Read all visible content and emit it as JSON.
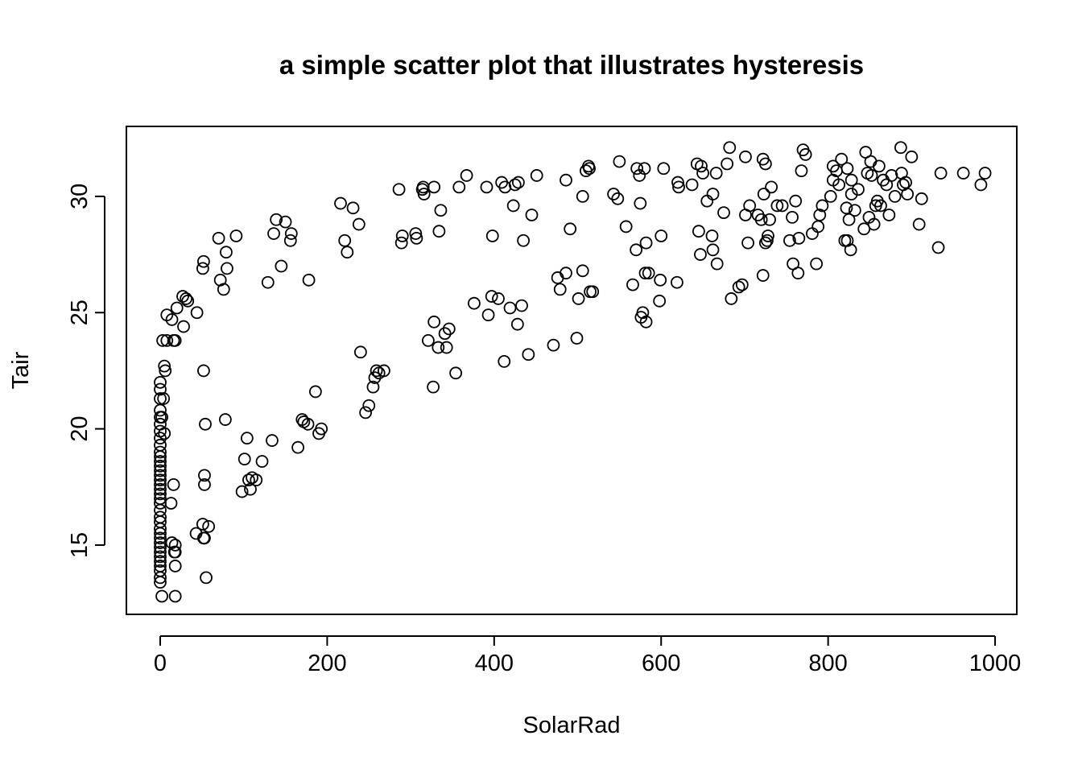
{
  "chart_data": {
    "type": "scatter",
    "title": "a simple scatter plot that illustrates hysteresis",
    "x_label": "SolarRad",
    "y_label": "Tair",
    "color": "#000000",
    "xlim": [
      -40.5,
      1026
    ],
    "ylim": [
      12.02,
      33.01
    ],
    "xticks": [
      0,
      200,
      400,
      600,
      800,
      1000
    ],
    "yticks": [
      15,
      20,
      25,
      30
    ],
    "x": [
      0,
      0,
      0,
      0,
      0,
      0,
      0,
      0,
      0,
      0,
      0,
      0,
      0,
      0,
      0,
      0,
      0,
      0,
      0,
      0,
      0,
      0,
      0,
      0,
      0,
      0,
      0,
      0,
      0,
      0,
      0,
      0,
      0,
      0,
      0,
      0,
      2,
      5,
      6,
      4,
      3,
      8,
      16,
      18,
      8,
      20,
      14,
      28,
      44,
      27,
      31,
      33,
      51,
      52,
      72,
      76,
      80,
      79,
      70,
      91,
      129,
      136,
      139,
      145,
      150,
      156,
      157,
      178,
      216,
      221,
      224,
      231,
      238,
      286,
      289,
      290,
      306,
      307,
      314,
      315,
      316,
      328,
      334,
      336,
      358,
      367,
      391,
      398,
      409,
      413,
      423,
      425,
      429,
      435,
      445,
      451,
      486,
      491,
      506,
      510,
      513,
      514,
      543,
      548,
      550,
      558,
      571,
      574,
      575,
      580,
      582,
      600,
      603,
      620,
      621,
      637,
      643,
      645,
      648,
      650,
      655,
      662,
      666,
      675,
      679,
      682,
      701,
      706,
      716,
      720,
      722,
      723,
      725,
      727,
      730,
      732,
      739,
      745,
      754,
      757,
      761,
      765,
      768,
      770,
      773,
      781,
      788,
      790,
      793,
      803,
      806,
      806,
      810,
      816,
      820,
      822,
      823,
      823,
      825,
      828,
      828,
      832,
      836,
      843,
      845,
      847,
      849,
      851,
      852,
      855,
      857,
      859,
      861,
      863,
      866,
      870,
      873,
      876,
      880,
      887,
      888,
      890,
      893,
      895,
      900,
      909,
      912,
      932,
      935,
      962,
      983,
      988,
      5,
      2,
      13,
      16,
      14,
      18,
      17,
      18,
      18,
      18,
      43,
      52,
      53,
      51,
      58,
      55,
      53,
      53,
      54,
      52,
      78,
      98,
      101,
      104,
      106,
      108,
      110,
      115,
      122,
      134,
      165,
      170,
      172,
      177,
      186,
      190,
      193,
      240,
      246,
      250,
      255,
      257,
      259,
      262,
      268,
      321,
      327,
      328,
      333,
      341,
      343,
      346,
      354,
      376,
      393,
      397,
      405,
      412,
      419,
      428,
      433,
      441,
      471,
      476,
      479,
      486,
      499,
      501,
      506,
      515,
      518,
      566,
      570,
      576,
      578,
      581,
      582,
      585,
      598,
      599,
      619,
      647,
      661,
      662,
      667,
      684,
      693,
      697,
      701,
      704,
      722,
      725,
      728,
      758,
      764,
      786,
      813,
      827
    ],
    "values": [
      13.4,
      13.6,
      13.9,
      14.1,
      14.3,
      14.5,
      14.7,
      14.9,
      15.1,
      15.3,
      15.5,
      15.7,
      16.0,
      16.2,
      16.5,
      16.8,
      17.0,
      17.2,
      17.4,
      17.6,
      17.8,
      18.0,
      18.2,
      18.4,
      18.6,
      18.8,
      19.0,
      19.3,
      19.6,
      19.9,
      20.2,
      20.5,
      20.8,
      21.3,
      21.7,
      22.0,
      12.8,
      22.7,
      22.5,
      21.3,
      23.8,
      23.8,
      23.8,
      23.8,
      24.9,
      25.2,
      24.7,
      24.4,
      25.0,
      25.7,
      25.6,
      25.5,
      26.9,
      27.2,
      26.4,
      26.0,
      26.9,
      27.6,
      28.2,
      28.3,
      26.3,
      28.4,
      29.0,
      27.0,
      28.9,
      28.1,
      28.4,
      26.4,
      29.7,
      28.1,
      27.6,
      29.5,
      28.8,
      30.3,
      28.0,
      28.3,
      28.4,
      28.2,
      30.3,
      30.4,
      30.1,
      30.4,
      28.5,
      29.4,
      30.4,
      30.9,
      30.4,
      28.3,
      30.6,
      30.4,
      29.6,
      30.5,
      30.6,
      28.1,
      29.2,
      30.9,
      30.7,
      28.6,
      30.0,
      31.1,
      31.3,
      31.2,
      30.1,
      29.9,
      31.5,
      28.7,
      31.2,
      30.9,
      29.7,
      31.2,
      28.0,
      28.3,
      31.2,
      30.6,
      30.4,
      30.5,
      31.4,
      28.5,
      31.3,
      31.0,
      29.8,
      30.1,
      31.0,
      29.3,
      31.4,
      32.1,
      31.7,
      29.6,
      29.2,
      29.0,
      31.6,
      30.1,
      31.4,
      28.1,
      29.0,
      30.4,
      29.6,
      29.6,
      28.1,
      29.1,
      29.8,
      28.2,
      31.1,
      32.0,
      31.8,
      28.4,
      28.7,
      29.2,
      29.6,
      30.0,
      30.7,
      31.3,
      31.1,
      31.6,
      28.1,
      29.5,
      28.1,
      31.2,
      29.0,
      30.1,
      30.7,
      29.4,
      30.3,
      28.6,
      31.9,
      31.0,
      29.1,
      31.5,
      30.9,
      28.8,
      29.6,
      29.8,
      31.3,
      29.6,
      30.7,
      30.5,
      29.2,
      30.9,
      30.0,
      32.1,
      31.0,
      30.5,
      30.6,
      30.1,
      31.7,
      28.8,
      29.9,
      27.8,
      31.0,
      31.0,
      30.5,
      31.0,
      19.8,
      20.5,
      16.8,
      17.6,
      15.1,
      15.0,
      14.7,
      14.7,
      14.1,
      12.8,
      15.5,
      15.3,
      15.3,
      15.9,
      15.8,
      13.6,
      17.6,
      18.0,
      20.2,
      22.5,
      20.4,
      17.3,
      18.7,
      19.6,
      17.8,
      17.4,
      17.9,
      17.8,
      18.6,
      19.5,
      19.2,
      20.4,
      20.3,
      20.2,
      21.6,
      19.8,
      20.0,
      23.3,
      20.7,
      21.0,
      21.8,
      22.2,
      22.5,
      22.4,
      22.5,
      23.8,
      21.8,
      24.6,
      23.5,
      24.1,
      23.5,
      24.3,
      22.4,
      25.4,
      24.9,
      25.7,
      25.6,
      22.9,
      25.2,
      24.5,
      25.3,
      23.2,
      23.6,
      26.5,
      26.0,
      26.7,
      23.9,
      25.6,
      26.8,
      25.9,
      25.9,
      26.2,
      27.7,
      24.8,
      25.0,
      26.7,
      24.6,
      26.7,
      25.5,
      26.4,
      26.3,
      27.5,
      28.3,
      27.7,
      27.1,
      25.6,
      26.1,
      26.2,
      29.2,
      28.0,
      26.6,
      28.0,
      28.3,
      27.1,
      26.7,
      27.1,
      30.5,
      27.7
    ]
  }
}
